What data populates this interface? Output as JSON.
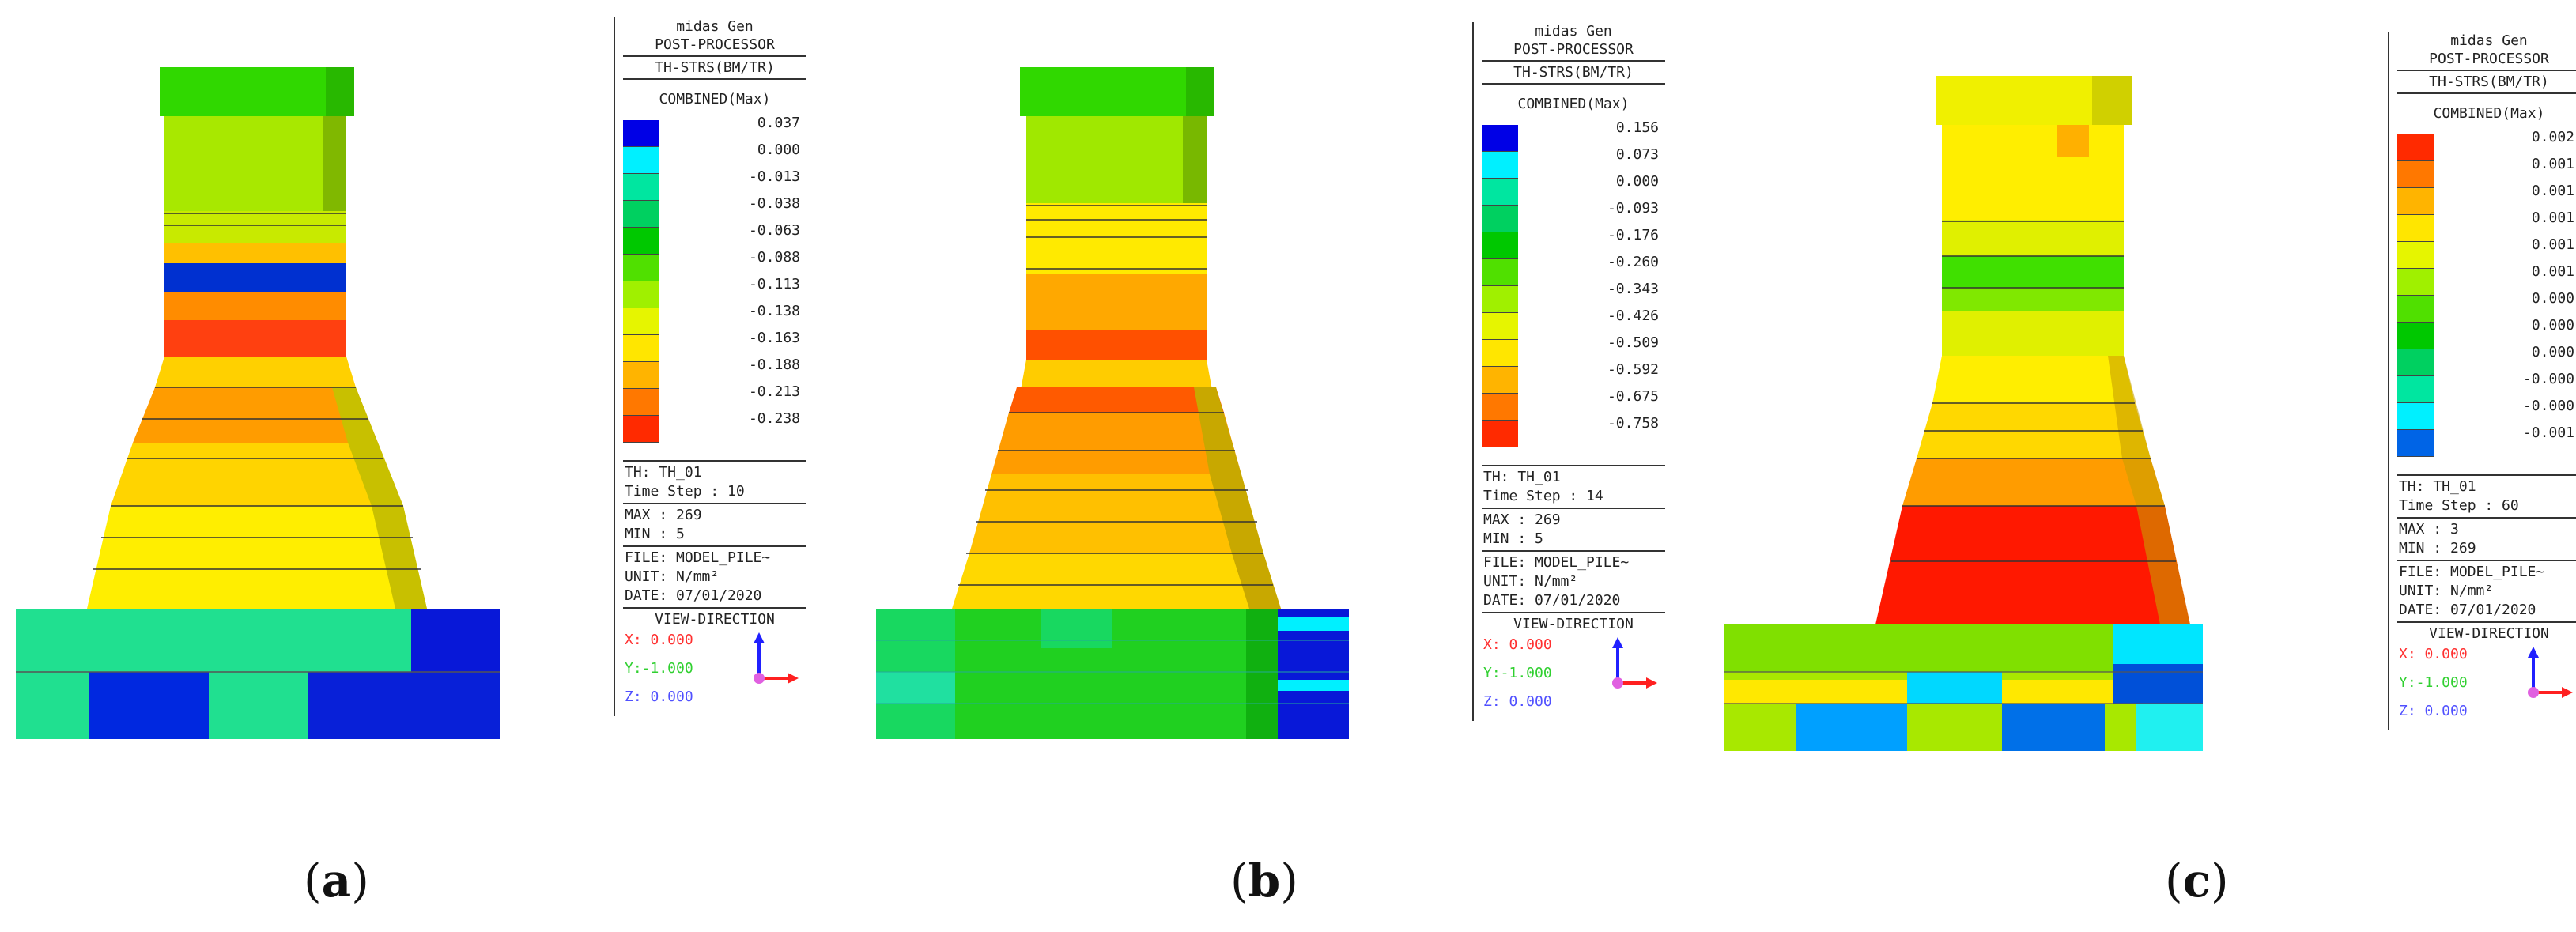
{
  "panels": [
    {
      "id": "a",
      "caption": "a",
      "legend": {
        "app": "midas Gen",
        "module": "POST-PROCESSOR",
        "result": "TH-STRS(BM/TR)",
        "component": "COMBINED(Max)",
        "scale_values": [
          "0.037",
          "0.000",
          "-0.013",
          "-0.038",
          "-0.063",
          "-0.088",
          "-0.113",
          "-0.138",
          "-0.163",
          "-0.188",
          "-0.213",
          "-0.238"
        ],
        "scale_colors": [
          "#0000e6",
          "#00f0ff",
          "#00e6a0",
          "#00d060",
          "#00c800",
          "#50e000",
          "#a0f000",
          "#e6f500",
          "#ffe600",
          "#ffb400",
          "#ff7800",
          "#ff2a00"
        ],
        "th": "TH: TH_01",
        "time_step": "Time Step : 10",
        "max": "MAX : 269",
        "min": "MIN : 5",
        "file": "FILE: MODEL_PILE~",
        "unit": "UNIT: N/mm²",
        "date": "DATE: 07/01/2020",
        "view_direction": "VIEW-DIRECTION",
        "x": "X: 0.000",
        "y": "Y:-1.000",
        "z": "Z: 0.000"
      }
    },
    {
      "id": "b",
      "caption": "b",
      "legend": {
        "app": "midas Gen",
        "module": "POST-PROCESSOR",
        "result": "TH-STRS(BM/TR)",
        "component": "COMBINED(Max)",
        "scale_values": [
          "0.156",
          "0.073",
          "0.000",
          "-0.093",
          "-0.176",
          "-0.260",
          "-0.343",
          "-0.426",
          "-0.509",
          "-0.592",
          "-0.675",
          "-0.758"
        ],
        "scale_colors": [
          "#0000e6",
          "#00f0ff",
          "#00e6a0",
          "#00d060",
          "#00c800",
          "#50e000",
          "#a0f000",
          "#e6f500",
          "#ffe600",
          "#ffb400",
          "#ff7800",
          "#ff2a00"
        ],
        "th": "TH: TH_01",
        "time_step": "Time Step : 14",
        "max": "MAX : 269",
        "min": "MIN : 5",
        "file": "FILE: MODEL_PILE~",
        "unit": "UNIT: N/mm²",
        "date": "DATE: 07/01/2020",
        "view_direction": "VIEW-DIRECTION",
        "x": "X: 0.000",
        "y": "Y:-1.000",
        "z": "Z: 0.000"
      }
    },
    {
      "id": "c",
      "caption": "c",
      "legend": {
        "app": "midas Gen",
        "module": "POST-PROCESSOR",
        "result": "TH-STRS(BM/TR)",
        "component": "COMBINED(Max)",
        "scale_values": [
          "0.002",
          "0.001",
          "0.001",
          "0.001",
          "0.001",
          "0.001",
          "0.000",
          "0.000",
          "0.000",
          "-0.000",
          "-0.000",
          "-0.001"
        ],
        "scale_colors": [
          "#ff2a00",
          "#ff7800",
          "#ffb400",
          "#ffe600",
          "#e6f500",
          "#a0f000",
          "#50e000",
          "#00c800",
          "#00d060",
          "#00e6a0",
          "#00f0ff",
          "#0064e6"
        ],
        "th": "TH: TH_01",
        "time_step": "Time Step : 60",
        "max": "MAX : 3",
        "min": "MIN : 269",
        "file": "FILE: MODEL_PILE~",
        "unit": "UNIT: N/mm²",
        "date": "DATE: 07/01/2020",
        "view_direction": "VIEW-DIRECTION",
        "x": "X: 0.000",
        "y": "Y:-1.000",
        "z": "Z: 0.000"
      }
    }
  ],
  "colors": {
    "x_axis": "#ff3030",
    "y_axis": "#30e030",
    "z_axis": "#3030ff"
  }
}
